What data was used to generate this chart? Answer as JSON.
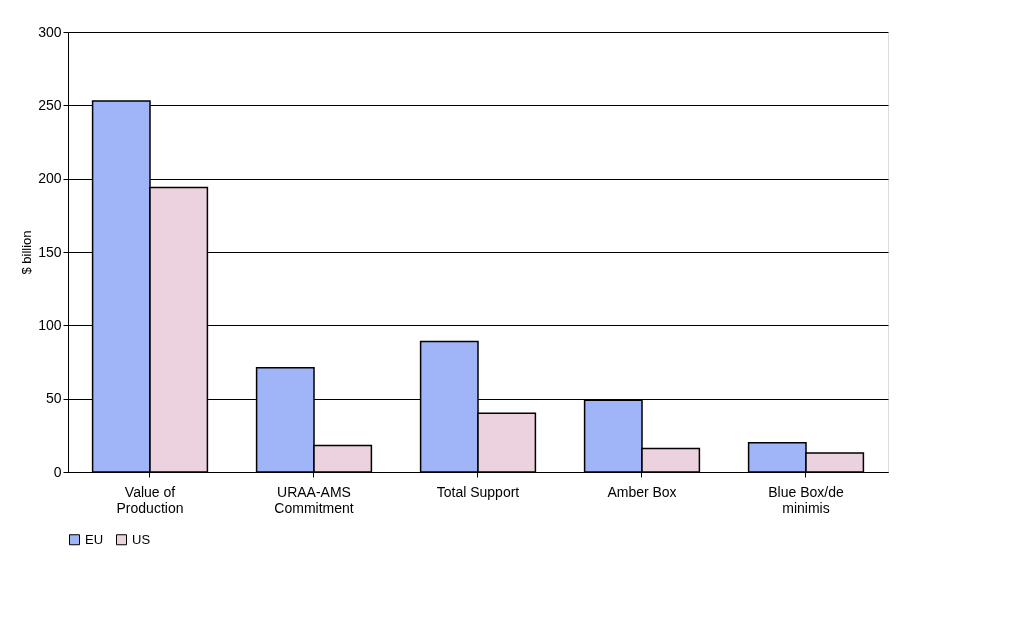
{
  "chart_data": {
    "type": "bar",
    "ylabel": "$ billion",
    "categories": [
      "Value of Production",
      "URAA-AMS Commitment",
      "Total Support",
      "Amber Box",
      "Blue Box/de minimis"
    ],
    "series": [
      {
        "name": "EU",
        "color": "#a0b4f8",
        "values": [
          253,
          71,
          89,
          49,
          20
        ]
      },
      {
        "name": "US",
        "color": "#ecd2de",
        "values": [
          194,
          18,
          40,
          16,
          13
        ]
      }
    ],
    "ylim": [
      0,
      300
    ],
    "yticks": [
      0,
      50,
      100,
      150,
      200,
      250,
      300
    ],
    "grid": "y",
    "legend": "bottom"
  }
}
